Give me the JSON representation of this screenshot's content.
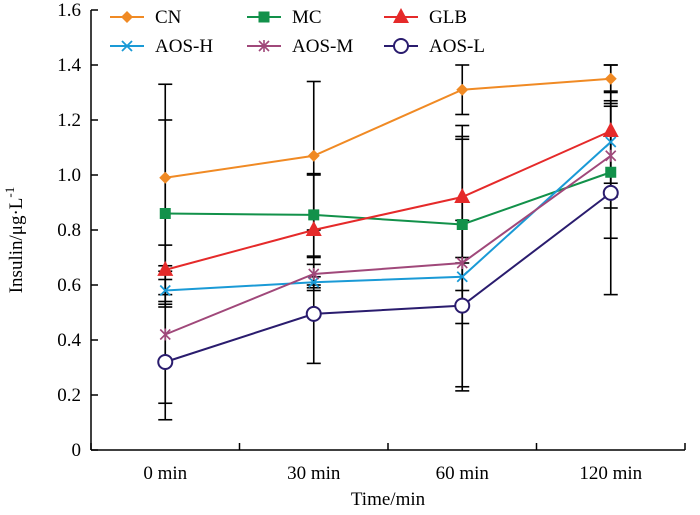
{
  "chart_data": {
    "type": "line",
    "title": "",
    "xlabel": "Time/min",
    "ylabel": "Insulin/μg·L",
    "ylabel_superscript": "-1",
    "categories": [
      "0 min",
      "30 min",
      "60 min",
      "120 min"
    ],
    "ylim": [
      0,
      1.6
    ],
    "yticks": [
      "0",
      "0.2",
      "0.4",
      "0.6",
      "0.8",
      "1.0",
      "1.2",
      "1.4",
      "1.6"
    ],
    "grid": false,
    "legend_position": "top",
    "series": [
      {
        "name": "CN",
        "color": "#f08a24",
        "marker": "diamond",
        "values": [
          0.99,
          1.07,
          1.31,
          1.35
        ],
        "error": [
          0.34,
          0.27,
          0.09,
          0.05
        ]
      },
      {
        "name": "MC",
        "color": "#12914a",
        "marker": "square",
        "values": [
          0.86,
          0.855,
          0.82,
          1.01
        ],
        "error": [
          0.34,
          0.15,
          0.36,
          0.24
        ]
      },
      {
        "name": "GLB",
        "color": "#e52a2a",
        "marker": "triangle",
        "values": [
          0.655,
          0.8,
          0.92,
          1.16
        ],
        "error": [
          0.09,
          0.2,
          0.22,
          0.24
        ]
      },
      {
        "name": "AOS-H",
        "color": "#1a9ad6",
        "marker": "x",
        "values": [
          0.58,
          0.61,
          0.63,
          1.12
        ],
        "error": [
          0.04,
          0.02,
          0.05,
          0.15
        ]
      },
      {
        "name": "AOS-M",
        "color": "#a0487a",
        "marker": "star",
        "values": [
          0.42,
          0.64,
          0.68,
          1.07
        ],
        "error": [
          0.25,
          0.06,
          0.45,
          0.19
        ]
      },
      {
        "name": "AOS-L",
        "color": "#2a1c6e",
        "marker": "circle",
        "values": [
          0.32,
          0.495,
          0.525,
          0.935
        ],
        "error": [
          0.21,
          0.18,
          0.31,
          0.37
        ]
      }
    ]
  }
}
